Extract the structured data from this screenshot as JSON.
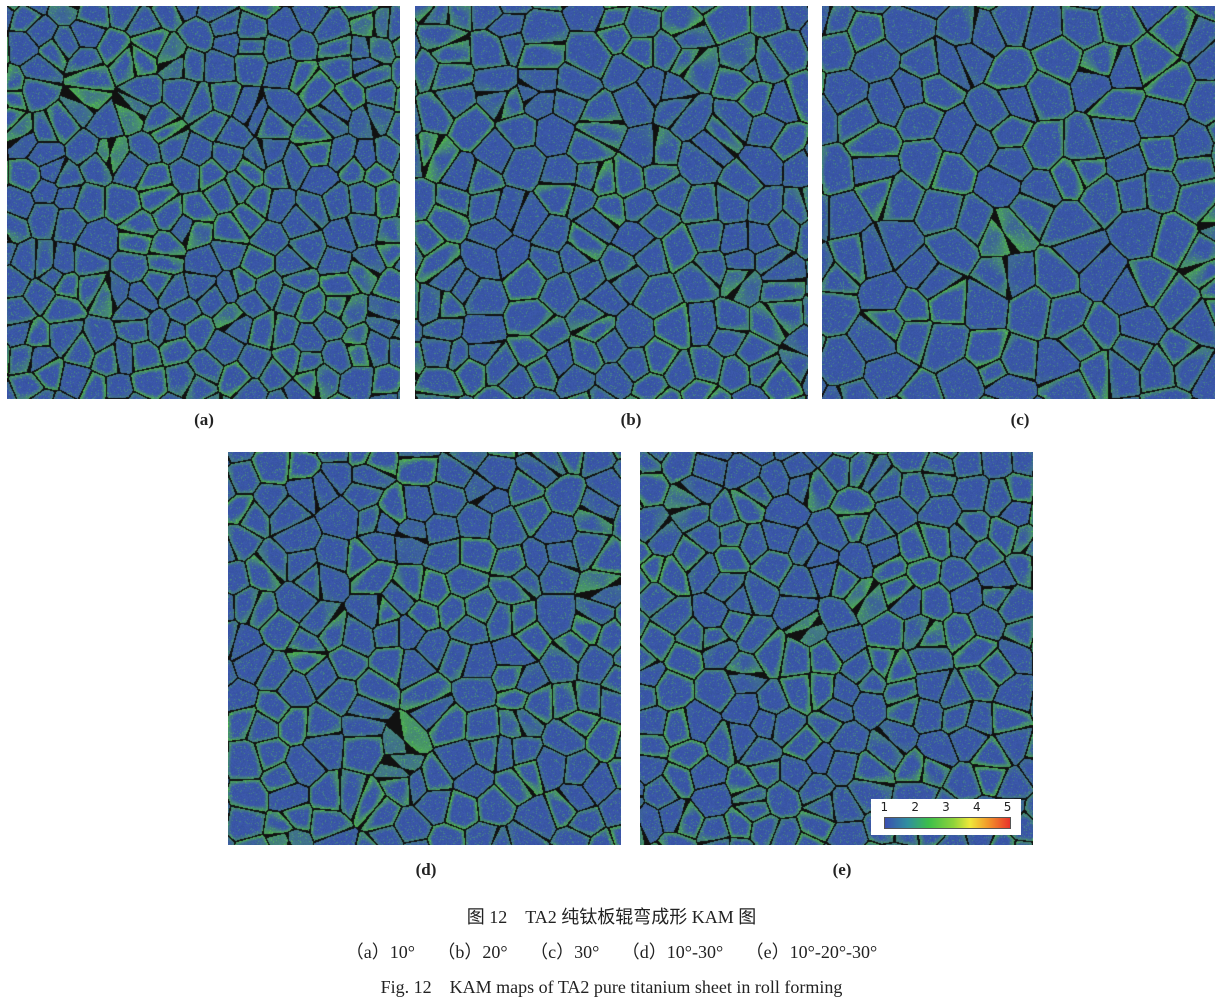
{
  "figure": {
    "panels": [
      {
        "id": "a",
        "label": "(a)"
      },
      {
        "id": "b",
        "label": "(b)"
      },
      {
        "id": "c",
        "label": "(c)"
      },
      {
        "id": "d",
        "label": "(d)"
      },
      {
        "id": "e",
        "label": "(e)"
      }
    ],
    "colorbar": {
      "ticks": [
        "1",
        "2",
        "3",
        "4",
        "5"
      ],
      "colors": [
        "#3b4fb0",
        "#3cbf4a",
        "#f0e83a",
        "#e8322a"
      ]
    },
    "map_colors": {
      "base": "#3b56a8",
      "strain": "#52c040",
      "boundary": "#111111"
    },
    "caption_cn": "图 12　TA2 纯钛板辊弯成形 KAM 图",
    "subcaption": "（a）10°　 （b）20°　 （c）30°　 （d）10°-30°　 （e）10°-20°-30°",
    "caption_en": "Fig. 12　KAM maps of TA2 pure titanium sheet in roll forming"
  }
}
